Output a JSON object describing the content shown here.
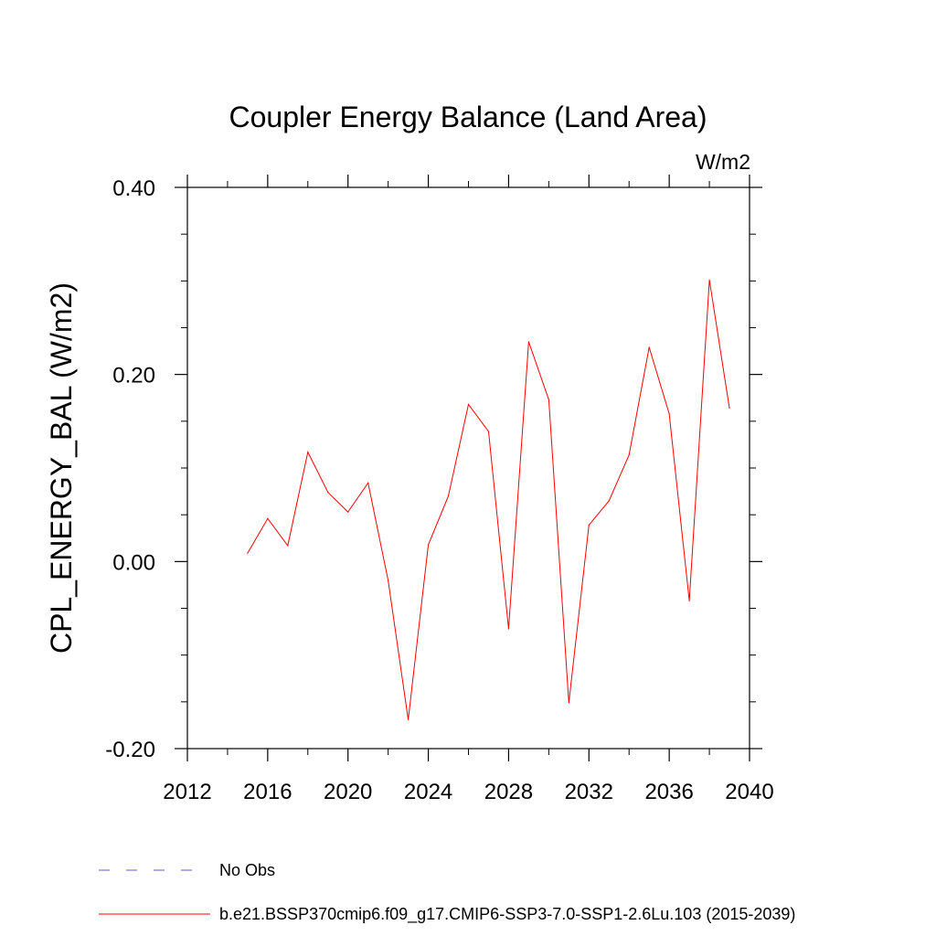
{
  "chart_data": {
    "type": "line",
    "title": "Coupler Energy Balance (Land Area)",
    "units_label": "W/m2",
    "ylabel": "CPL_ENERGY_BAL  (W/m2)",
    "xlabel": "",
    "xlim": [
      2012,
      2040
    ],
    "ylim": [
      -0.2,
      0.4
    ],
    "x_ticks": [
      2012,
      2016,
      2020,
      2024,
      2028,
      2032,
      2036,
      2040
    ],
    "x_tick_labels": [
      "2012",
      "2016",
      "2020",
      "2024",
      "2028",
      "2032",
      "2036",
      "2040"
    ],
    "y_ticks": [
      -0.2,
      0.0,
      0.2,
      0.4
    ],
    "y_tick_labels": [
      "-0.20",
      "0.00",
      "0.20",
      "0.40"
    ],
    "grid": false,
    "series": [
      {
        "name": "b.e21.BSSP370cmip6.f09_g17.CMIP6-SSP3-7.0-SSP1-2.6Lu.103 (2015-2039)",
        "color": "#ff0000",
        "x": [
          2015,
          2016,
          2017,
          2018,
          2019,
          2020,
          2021,
          2022,
          2023,
          2024,
          2025,
          2026,
          2027,
          2028,
          2029,
          2030,
          2031,
          2032,
          2033,
          2034,
          2035,
          2036,
          2037,
          2038,
          2039
        ],
        "values": [
          0.009,
          0.046,
          0.017,
          0.117,
          0.074,
          0.053,
          0.084,
          -0.02,
          -0.169,
          0.018,
          0.07,
          0.168,
          0.139,
          -0.072,
          0.235,
          0.173,
          -0.151,
          0.039,
          0.065,
          0.114,
          0.229,
          0.158,
          -0.042,
          0.301,
          0.164
        ]
      }
    ],
    "legend": [
      {
        "label": "No Obs",
        "color": "#6a5acd",
        "style": "dashed"
      },
      {
        "label": "b.e21.BSSP370cmip6.f09_g17.CMIP6-SSP3-7.0-SSP1-2.6Lu.103 (2015-2039)",
        "color": "#ff0000",
        "style": "solid"
      }
    ]
  }
}
